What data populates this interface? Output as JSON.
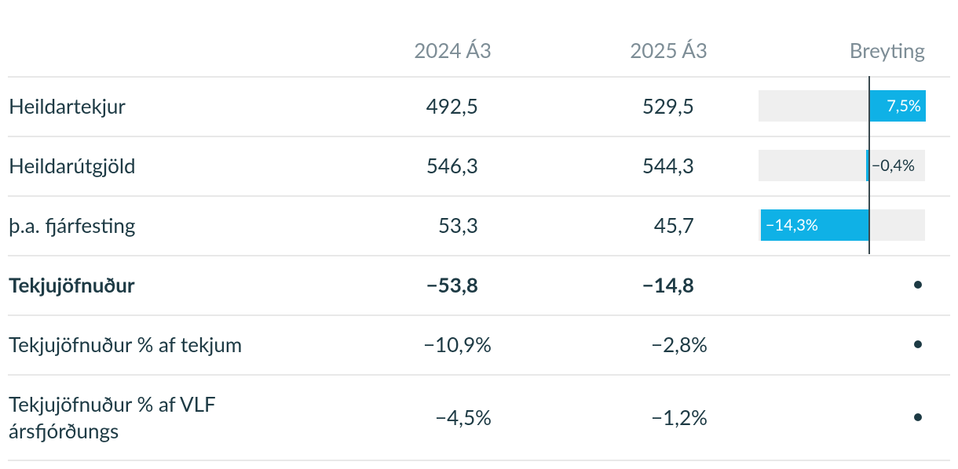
{
  "table": {
    "headers": [
      "2024 Á3",
      "2025 Á3",
      "Breyting"
    ],
    "rows": [
      {
        "label": "Heildartekjur",
        "values": [
          "492,5",
          "529,5"
        ]
      },
      {
        "label": "Heildarútgjöld",
        "values": [
          "546,3",
          "544,3"
        ]
      },
      {
        "label": "þ.a. fjárfesting",
        "values": [
          "53,3",
          "45,7"
        ]
      },
      {
        "label": "Tekjujöfnuður",
        "values": [
          "−53,8",
          "−14,8"
        ],
        "bold": true
      },
      {
        "label": "Tekjujöfnuður % af tekjum",
        "values": [
          "−10,9%",
          "−2,8%"
        ]
      },
      {
        "label": "Tekjujöfnuður % af VLF ársfjórðungs",
        "values": [
          "−4,5%",
          "−1,2%"
        ]
      }
    ],
    "change": {
      "values": [
        7.5,
        -0.4,
        -14.3
      ],
      "value_labels": [
        "7,5%",
        "−0,4%",
        "−14,3%"
      ],
      "xlim": [
        -14.6,
        7.4
      ],
      "color": "#0fb1e6"
    }
  }
}
